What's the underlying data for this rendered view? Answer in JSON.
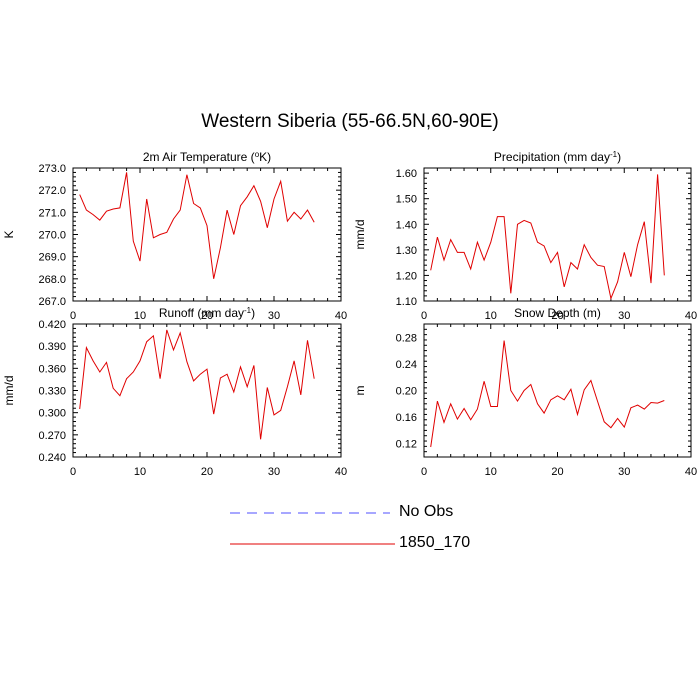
{
  "title": "Western Siberia (55-66.5N,60-90E)",
  "legend": {
    "entries": [
      {
        "label": "No Obs",
        "color": "#4f4fff",
        "style": "dashed"
      },
      {
        "label": "1850_170",
        "color": "#e00000",
        "style": "solid"
      }
    ]
  },
  "chart_data": [
    {
      "type": "line",
      "title": "2m Air Temperature (°K)",
      "ylabel": "K",
      "xlim": [
        0,
        40
      ],
      "ylim": [
        267.0,
        273.0
      ],
      "xticks": [
        0,
        10,
        20,
        30,
        40
      ],
      "yticks": [
        267.0,
        268.0,
        269.0,
        270.0,
        271.0,
        272.0,
        273.0
      ],
      "ytick_decimals": 1,
      "series": [
        {
          "name": "1850_170",
          "color": "#e00000",
          "x": [
            1,
            2,
            3,
            4,
            5,
            6,
            7,
            8,
            9,
            10,
            11,
            12,
            13,
            14,
            15,
            16,
            17,
            18,
            19,
            20,
            21,
            22,
            23,
            24,
            25,
            26,
            27,
            28,
            29,
            30,
            31,
            32,
            33,
            34,
            35,
            36
          ],
          "y": [
            271.8,
            271.1,
            270.9,
            270.65,
            271.05,
            271.15,
            271.2,
            272.8,
            269.7,
            268.8,
            271.6,
            269.85,
            270.0,
            270.1,
            270.7,
            271.1,
            272.7,
            271.4,
            271.2,
            270.4,
            268.0,
            269.4,
            271.1,
            270.0,
            271.3,
            271.7,
            272.2,
            271.5,
            270.3,
            271.6,
            272.4,
            270.6,
            271.0,
            270.7,
            271.1,
            270.55
          ]
        }
      ]
    },
    {
      "type": "line",
      "title": "Precipitation (mm day-1)",
      "ylabel": "mm/d",
      "xlim": [
        0,
        40
      ],
      "ylim": [
        1.1,
        1.62
      ],
      "xticks": [
        0,
        10,
        20,
        30,
        40
      ],
      "yticks": [
        1.1,
        1.2,
        1.3,
        1.4,
        1.5,
        1.6
      ],
      "ytick_decimals": 2,
      "series": [
        {
          "name": "1850_170",
          "color": "#e00000",
          "x": [
            1,
            2,
            3,
            4,
            5,
            6,
            7,
            8,
            9,
            10,
            11,
            12,
            13,
            14,
            15,
            16,
            17,
            18,
            19,
            20,
            21,
            22,
            23,
            24,
            25,
            26,
            27,
            28,
            29,
            30,
            31,
            32,
            33,
            34,
            35,
            36
          ],
          "y": [
            1.22,
            1.35,
            1.26,
            1.34,
            1.29,
            1.29,
            1.225,
            1.33,
            1.26,
            1.33,
            1.43,
            1.43,
            1.13,
            1.4,
            1.415,
            1.405,
            1.33,
            1.315,
            1.25,
            1.29,
            1.155,
            1.25,
            1.225,
            1.32,
            1.27,
            1.24,
            1.235,
            1.11,
            1.175,
            1.29,
            1.195,
            1.32,
            1.41,
            1.17,
            1.595,
            1.2
          ]
        }
      ]
    },
    {
      "type": "line",
      "title": "Runoff (mm day-1)",
      "ylabel": "mm/d",
      "xlim": [
        0,
        40
      ],
      "ylim": [
        0.24,
        0.42
      ],
      "xticks": [
        0,
        10,
        20,
        30,
        40
      ],
      "yticks": [
        0.24,
        0.27,
        0.3,
        0.33,
        0.36,
        0.39,
        0.42
      ],
      "ytick_decimals": 3,
      "series": [
        {
          "name": "1850_170",
          "color": "#e00000",
          "x": [
            1,
            2,
            3,
            4,
            5,
            6,
            7,
            8,
            9,
            10,
            11,
            12,
            13,
            14,
            15,
            16,
            17,
            18,
            19,
            20,
            21,
            22,
            23,
            24,
            25,
            26,
            27,
            28,
            29,
            30,
            31,
            32,
            33,
            34,
            35,
            36
          ],
          "y": [
            0.305,
            0.388,
            0.37,
            0.355,
            0.368,
            0.333,
            0.323,
            0.346,
            0.355,
            0.37,
            0.396,
            0.404,
            0.346,
            0.412,
            0.385,
            0.408,
            0.369,
            0.343,
            0.352,
            0.359,
            0.298,
            0.347,
            0.352,
            0.328,
            0.362,
            0.335,
            0.364,
            0.264,
            0.334,
            0.297,
            0.303,
            0.335,
            0.37,
            0.324,
            0.398,
            0.346
          ]
        }
      ]
    },
    {
      "type": "line",
      "title": "Snow Depth (m)",
      "ylabel": "m",
      "xlim": [
        0,
        40
      ],
      "ylim": [
        0.1,
        0.3
      ],
      "xticks": [
        0,
        10,
        20,
        30,
        40
      ],
      "yticks": [
        0.12,
        0.16,
        0.2,
        0.24,
        0.28
      ],
      "ytick_decimals": 2,
      "series": [
        {
          "name": "1850_170",
          "color": "#e00000",
          "x": [
            1,
            2,
            3,
            4,
            5,
            6,
            7,
            8,
            9,
            10,
            11,
            12,
            13,
            14,
            15,
            16,
            17,
            18,
            19,
            20,
            21,
            22,
            23,
            24,
            25,
            26,
            27,
            28,
            29,
            30,
            31,
            32,
            33,
            34,
            35,
            36
          ],
          "y": [
            0.115,
            0.184,
            0.152,
            0.18,
            0.157,
            0.173,
            0.156,
            0.172,
            0.214,
            0.176,
            0.176,
            0.275,
            0.2,
            0.184,
            0.2,
            0.209,
            0.18,
            0.166,
            0.186,
            0.192,
            0.186,
            0.202,
            0.164,
            0.201,
            0.215,
            0.184,
            0.153,
            0.144,
            0.158,
            0.145,
            0.174,
            0.178,
            0.172,
            0.182,
            0.181,
            0.185
          ]
        }
      ]
    }
  ]
}
